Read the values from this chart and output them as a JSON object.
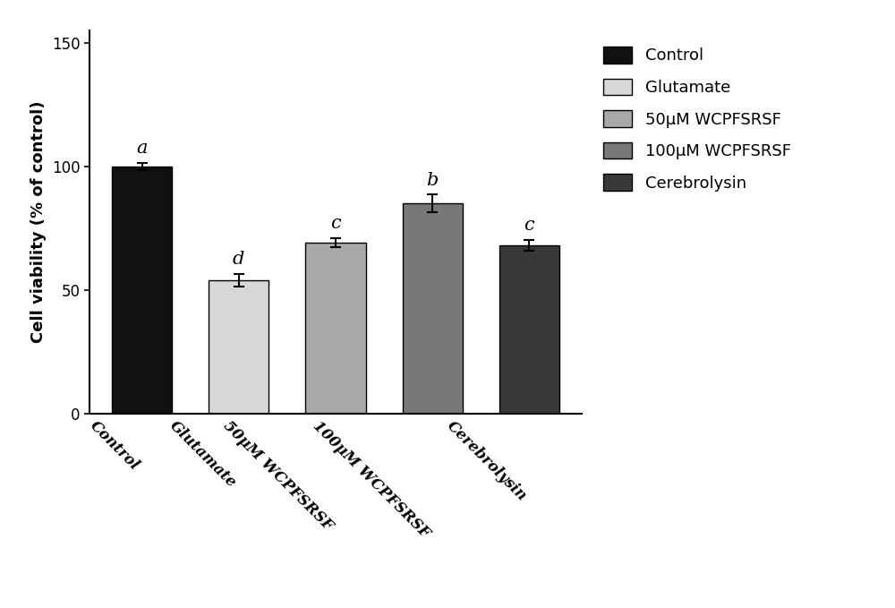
{
  "categories": [
    "Control",
    "Glutamate",
    "50μM WCPFSRSF",
    "100μM WCPFSRSF",
    "Cerebrolysin"
  ],
  "tick_labels": [
    "Control",
    "Glutamate",
    "50μM WCPFSRSF",
    "100μM WCPFSRSF",
    "Cerebrolysin"
  ],
  "values": [
    100.0,
    54.0,
    69.0,
    85.0,
    68.0
  ],
  "errors": [
    1.5,
    2.5,
    1.8,
    3.5,
    2.2
  ],
  "bar_colors": [
    "#111111",
    "#d8d8d8",
    "#a8a8a8",
    "#787878",
    "#383838"
  ],
  "edge_colors": [
    "#000000",
    "#000000",
    "#000000",
    "#000000",
    "#000000"
  ],
  "significance_labels": [
    "a",
    "d",
    "c",
    "b",
    "c"
  ],
  "ylabel": "Cell viability (% of control)",
  "ylim": [
    0,
    155
  ],
  "yticks": [
    0,
    50,
    100,
    150
  ],
  "legend_labels": [
    "Control",
    "Glutamate",
    "50μM WCPFSRSF",
    "100μM WCPFSRSF",
    "Cerebrolysin"
  ],
  "legend_colors": [
    "#111111",
    "#d8d8d8",
    "#a8a8a8",
    "#787878",
    "#383838"
  ],
  "background_color": "#ffffff",
  "bar_width": 0.62,
  "sig_label_fontsize": 15,
  "ylabel_fontsize": 13,
  "tick_fontsize": 12,
  "legend_fontsize": 13
}
